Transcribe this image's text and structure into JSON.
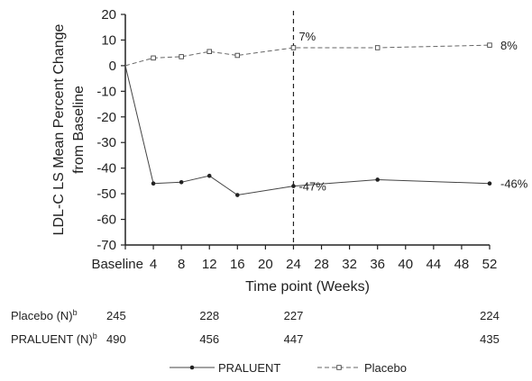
{
  "chart_data": {
    "type": "line",
    "xlabel": "Time point (Weeks)",
    "ylabel_lines": [
      "LDL-C LS Mean Percent Change",
      "from Baseline"
    ],
    "xlim": [
      0,
      52
    ],
    "ylim": [
      -70,
      20
    ],
    "x_ticks": [
      {
        "value": 0,
        "label": "Baseline"
      },
      {
        "value": 4,
        "label": "4"
      },
      {
        "value": 8,
        "label": "8"
      },
      {
        "value": 12,
        "label": "12"
      },
      {
        "value": 16,
        "label": "16"
      },
      {
        "value": 20,
        "label": "20"
      },
      {
        "value": 24,
        "label": "24"
      },
      {
        "value": 28,
        "label": "28"
      },
      {
        "value": 32,
        "label": "32"
      },
      {
        "value": 36,
        "label": "36"
      },
      {
        "value": 40,
        "label": "40"
      },
      {
        "value": 44,
        "label": "44"
      },
      {
        "value": 48,
        "label": "48"
      },
      {
        "value": 52,
        "label": "52"
      }
    ],
    "y_ticks": [
      20,
      10,
      0,
      -10,
      -20,
      -30,
      -40,
      -50,
      -60,
      -70
    ],
    "reference_line_x": 24,
    "series": [
      {
        "name": "PRALUENT",
        "style": "solid",
        "marker": "filled-circle",
        "color": "#444444",
        "x": [
          0,
          4,
          8,
          12,
          16,
          24,
          36,
          52
        ],
        "y": [
          0,
          -46,
          -45.5,
          -43,
          -50.5,
          -47,
          -44.5,
          -46
        ]
      },
      {
        "name": "Placebo",
        "style": "dashed",
        "marker": "open-square",
        "color": "#666666",
        "x": [
          0,
          4,
          8,
          12,
          16,
          24,
          36,
          52
        ],
        "y": [
          0,
          3,
          3.5,
          5.5,
          4,
          7,
          7,
          8
        ]
      }
    ],
    "annotations": [
      {
        "text": "7%",
        "x": 24,
        "y": 7,
        "series": "Placebo"
      },
      {
        "text": "8%",
        "x": 52,
        "y": 8,
        "series": "Placebo"
      },
      {
        "text": "-47%",
        "x": 24,
        "y": -47,
        "series": "PRALUENT"
      },
      {
        "text": "-46%",
        "x": 52,
        "y": -46,
        "series": "PRALUENT"
      }
    ],
    "n_table": [
      {
        "label": "Placebo (N)",
        "sup": "b",
        "counts": [
          {
            "x": 0,
            "value": "245"
          },
          {
            "x": 12,
            "value": "228"
          },
          {
            "x": 24,
            "value": "227"
          },
          {
            "x": 52,
            "value": "224"
          }
        ]
      },
      {
        "label": "PRALUENT (N)",
        "sup": "b",
        "counts": [
          {
            "x": 0,
            "value": "490"
          },
          {
            "x": 12,
            "value": "456"
          },
          {
            "x": 24,
            "value": "447"
          },
          {
            "x": 52,
            "value": "435"
          }
        ]
      }
    ],
    "legend": [
      {
        "label": "PRALUENT",
        "series": "PRALUENT"
      },
      {
        "label": "Placebo",
        "series": "Placebo"
      }
    ],
    "legend_position": "bottom",
    "grid": false
  }
}
